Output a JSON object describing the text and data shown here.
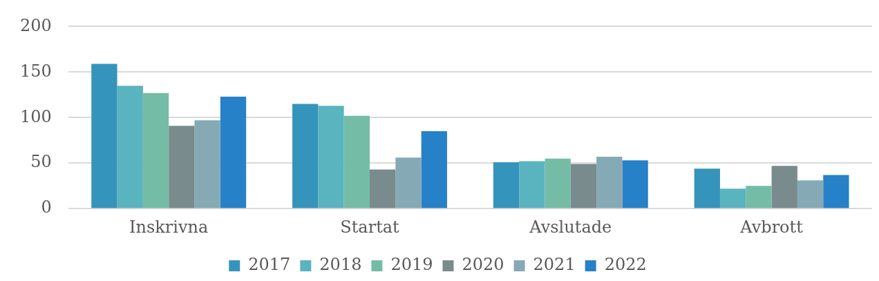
{
  "chart_data": {
    "type": "bar",
    "categories": [
      "Inskrivna",
      "Startat",
      "Avslutade",
      "Avbrott"
    ],
    "series": [
      {
        "name": "2017",
        "color": "#3594bb",
        "values": [
          159,
          115,
          51,
          44
        ]
      },
      {
        "name": "2018",
        "color": "#5ab4bf",
        "values": [
          135,
          113,
          52,
          22
        ]
      },
      {
        "name": "2019",
        "color": "#75bca6",
        "values": [
          127,
          102,
          55,
          25
        ]
      },
      {
        "name": "2020",
        "color": "#798b8d",
        "values": [
          91,
          43,
          49,
          47
        ]
      },
      {
        "name": "2021",
        "color": "#85aab5",
        "values": [
          97,
          56,
          57,
          31
        ]
      },
      {
        "name": "2022",
        "color": "#2781c8",
        "values": [
          123,
          85,
          53,
          37
        ]
      }
    ],
    "ylim": [
      0,
      200
    ],
    "yticks": [
      0,
      50,
      100,
      150,
      200
    ],
    "grid": "y",
    "legend": "bottom"
  }
}
